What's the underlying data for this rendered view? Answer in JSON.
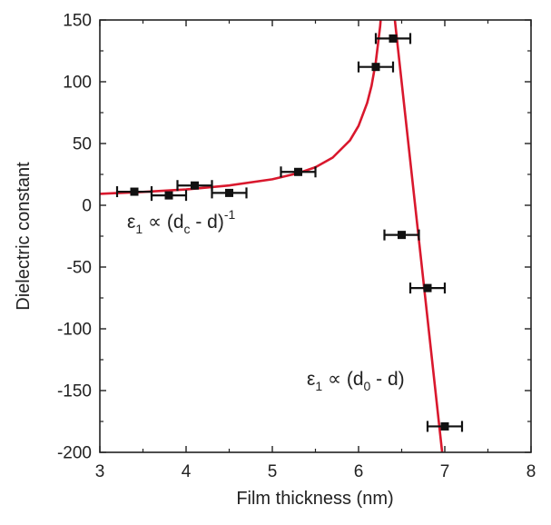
{
  "chart_data": {
    "type": "scatter",
    "xlabel": "Film thickness (nm)",
    "ylabel": "Dielectric constant",
    "xlim": [
      3,
      8
    ],
    "ylim": [
      -200,
      150
    ],
    "xticks": [
      3,
      4,
      5,
      6,
      7,
      8
    ],
    "yticks": [
      -200,
      -150,
      -100,
      -50,
      0,
      50,
      100,
      150
    ],
    "grid": false,
    "series": [
      {
        "points": [
          {
            "x": 3.4,
            "y": 11,
            "xerr": 0.2
          },
          {
            "x": 3.8,
            "y": 8,
            "xerr": 0.2
          },
          {
            "x": 4.1,
            "y": 16,
            "xerr": 0.2
          },
          {
            "x": 4.5,
            "y": 10,
            "xerr": 0.2
          },
          {
            "x": 5.3,
            "y": 27,
            "xerr": 0.2
          },
          {
            "x": 6.2,
            "y": 112,
            "xerr": 0.2
          },
          {
            "x": 6.4,
            "y": 135,
            "xerr": 0.2
          },
          {
            "x": 6.5,
            "y": -24,
            "xerr": 0.2
          },
          {
            "x": 6.8,
            "y": -67,
            "xerr": 0.2
          },
          {
            "x": 7.0,
            "y": -179,
            "xerr": 0.2
          }
        ]
      }
    ],
    "fit_lines": [
      {
        "x": [
          3.0,
          3.5,
          4.0,
          4.5,
          5.0,
          5.3,
          5.5,
          5.7,
          5.9,
          6.0,
          6.1,
          6.15,
          6.2,
          6.25,
          6.28
        ],
        "y": [
          9.3,
          10.8,
          12.8,
          16.0,
          21.0,
          26.0,
          30.8,
          38.6,
          52.5,
          64.3,
          82.9,
          96.7,
          116.0,
          145.0,
          170.0
        ]
      },
      {
        "x": [
          6.39,
          6.97
        ],
        "y": [
          170,
          -200
        ]
      }
    ],
    "annotations": [
      {
        "base": "ε",
        "sub": "1",
        "mid": " ∝ (d",
        "sub2": "c",
        "tail": " - d)",
        "sup": "-1"
      },
      {
        "base": "ε",
        "sub": "1",
        "mid": " ∝ (d",
        "sub2": "0",
        "tail": " - d)",
        "sup": ""
      }
    ],
    "colors": {
      "fit": "#d9182d",
      "points": "#111111",
      "axes": "#222222"
    }
  }
}
